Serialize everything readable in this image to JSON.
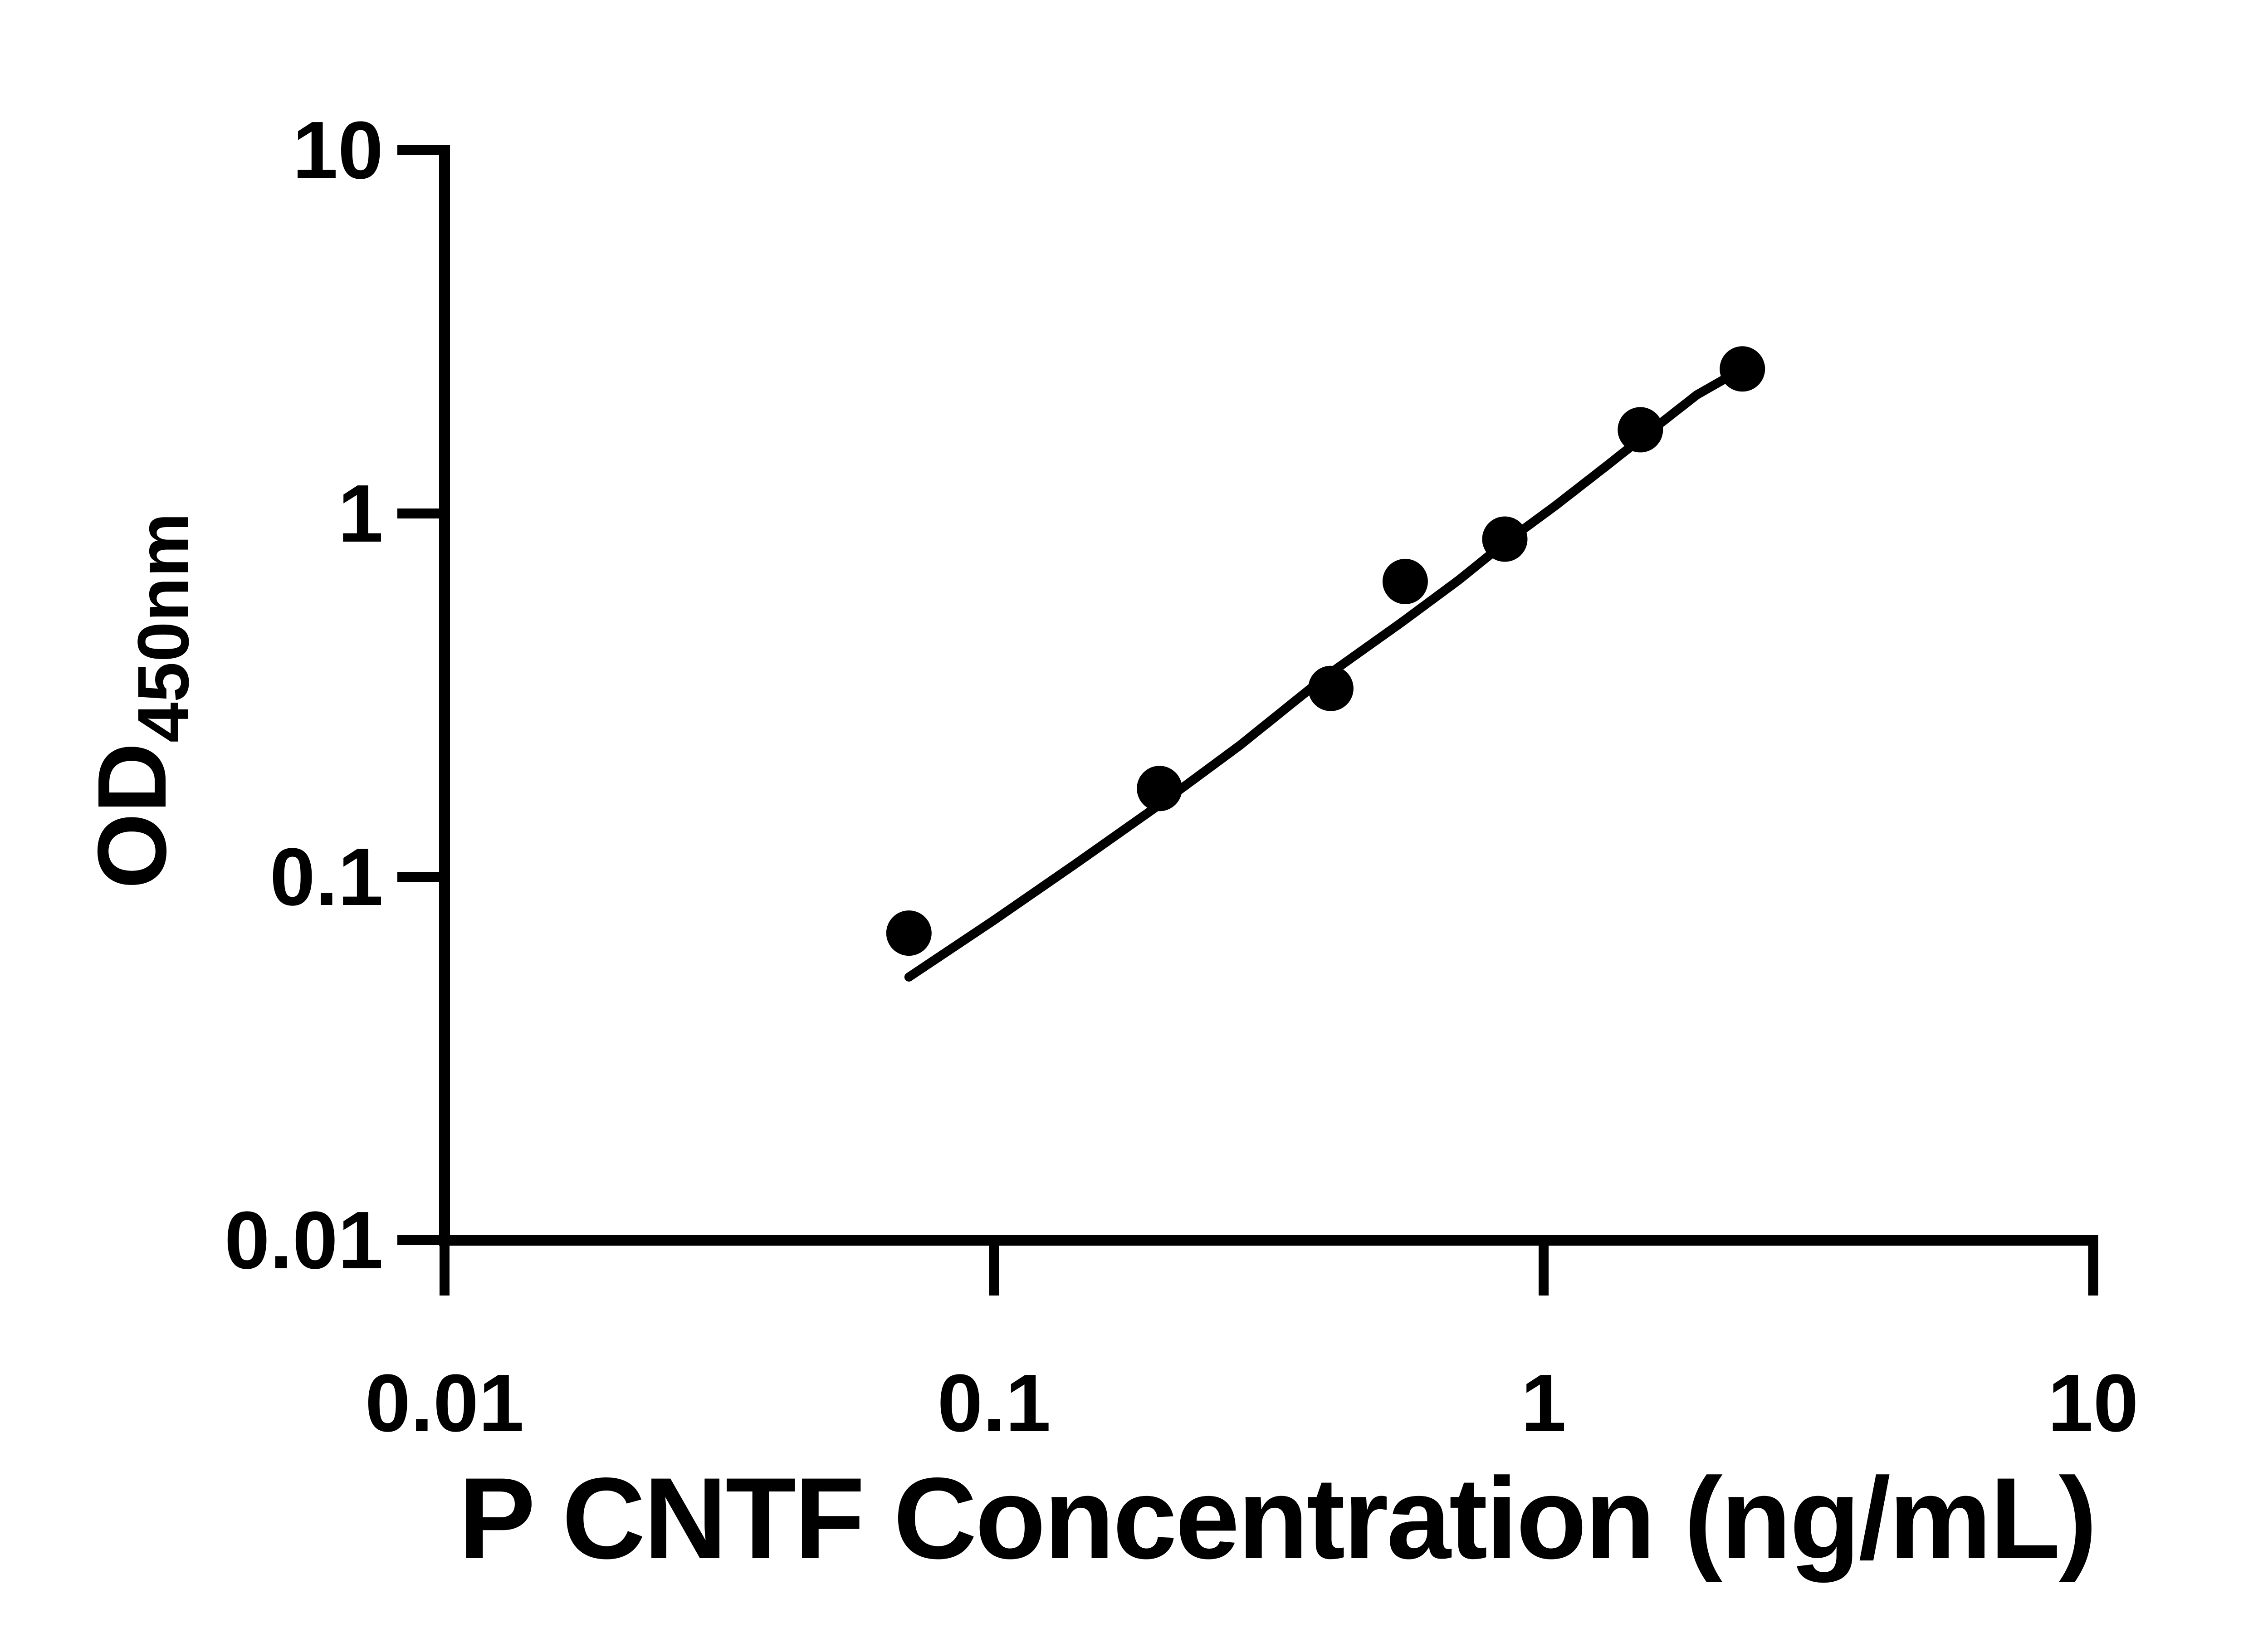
{
  "figure": {
    "background_color": "#ffffff",
    "ink_color": "#000000"
  },
  "chart_data": {
    "type": "scatter",
    "title": "",
    "xlabel": "P CNTF Concentration (ng/mL)",
    "ylabel_main": "OD",
    "ylabel_sub": "450nm",
    "x_scale": "log",
    "y_scale": "log",
    "xlim": [
      0.01,
      10
    ],
    "ylim": [
      0.01,
      10
    ],
    "grid": false,
    "legend": null,
    "x_tick_values": [
      0.01,
      0.1,
      1,
      10
    ],
    "x_tick_labels": [
      "0.01",
      "0.1",
      "1",
      "10"
    ],
    "y_tick_values": [
      10,
      1,
      0.1,
      0.01
    ],
    "y_tick_labels": [
      "10",
      "1",
      "0.1",
      "0.01"
    ],
    "points": {
      "x": [
        0.07,
        0.2,
        0.41,
        0.56,
        0.85,
        1.5,
        2.3
      ],
      "od": [
        0.07,
        0.175,
        0.33,
        0.65,
        0.85,
        1.7,
        2.5
      ]
    },
    "fit_curve": {
      "x": [
        0.07,
        0.1,
        0.14,
        0.2,
        0.28,
        0.4,
        0.55,
        0.7,
        0.85,
        1.05,
        1.3,
        1.6,
        1.9,
        2.3
      ],
      "od": [
        0.053,
        0.076,
        0.108,
        0.158,
        0.23,
        0.355,
        0.5,
        0.655,
        0.83,
        1.05,
        1.35,
        1.73,
        2.12,
        2.5
      ]
    },
    "marker": {
      "shape": "circle",
      "radius_px": 50,
      "color": "#000000"
    },
    "curve_stroke_px": 20,
    "axis_stroke_px": 24,
    "tick_stroke_px": 22
  }
}
